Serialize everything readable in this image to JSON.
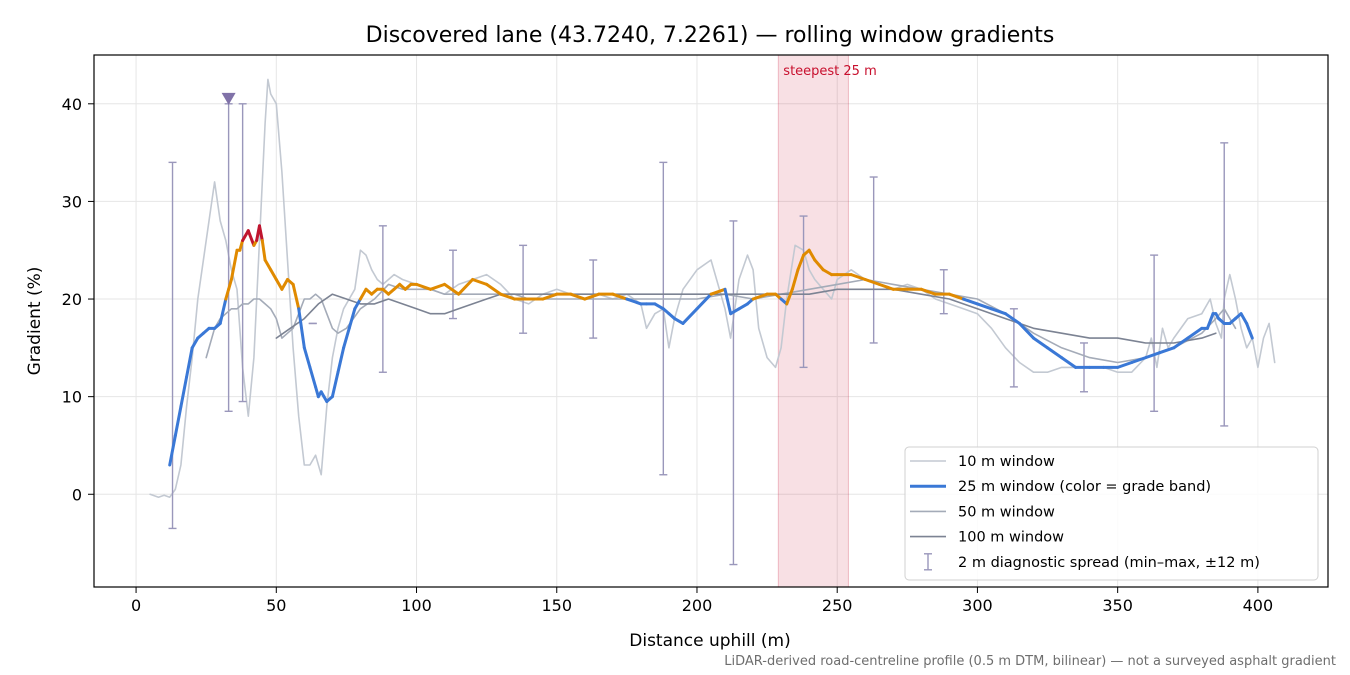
{
  "chart_data": {
    "type": "line",
    "title": "Discovered lane (43.7240, 7.2261) — rolling window gradients",
    "xlabel": "Distance uphill (m)",
    "ylabel": "Gradient (%)",
    "xlim": [
      -15,
      425
    ],
    "ylim": [
      -9.5,
      45
    ],
    "xticks": [
      0,
      50,
      100,
      150,
      200,
      250,
      300,
      350,
      400
    ],
    "yticks": [
      0,
      10,
      20,
      30,
      40
    ],
    "grid": true,
    "legend_position": "lower-right",
    "footer": "LiDAR-derived road-centreline profile (0.5 m DTM, bilinear) — not a surveyed asphalt gradient",
    "highlight": {
      "x_start": 229,
      "x_end": 254,
      "label": "steepest 25 m",
      "color": "#c8102e"
    },
    "marker": {
      "x": 33,
      "y": 40.5,
      "shape": "triangle-down",
      "color": "#8072a8"
    },
    "colors": {
      "w10": "#c3c9d2",
      "w50": "#a4abb8",
      "w100": "#7c8393",
      "grade_low": "#3a78d6",
      "grade_mid": "#e08a00",
      "grade_high": "#c0152f",
      "errorbar": "#9a97bb"
    },
    "series": [
      {
        "name": "10 m window",
        "x": [
          5,
          8,
          10,
          12,
          14,
          16,
          18,
          20,
          22,
          24,
          26,
          28,
          30,
          32,
          34,
          36,
          38,
          40,
          42,
          44,
          46,
          47,
          48,
          50,
          52,
          54,
          56,
          58,
          60,
          62,
          64,
          66,
          68,
          70,
          72,
          74,
          76,
          78,
          80,
          82,
          84,
          86,
          88,
          90,
          92,
          95,
          100,
          105,
          110,
          115,
          120,
          125,
          130,
          135,
          140,
          145,
          150,
          155,
          160,
          165,
          170,
          175,
          180,
          182,
          185,
          188,
          190,
          192,
          195,
          200,
          205,
          210,
          212,
          215,
          218,
          220,
          222,
          225,
          228,
          230,
          232,
          235,
          238,
          240,
          242,
          245,
          248,
          250,
          255,
          260,
          265,
          270,
          275,
          280,
          285,
          290,
          295,
          300,
          305,
          310,
          315,
          320,
          325,
          330,
          335,
          340,
          345,
          350,
          355,
          360,
          362,
          364,
          366,
          368,
          370,
          375,
          380,
          383,
          385,
          387,
          388,
          390,
          392,
          394,
          396,
          398,
          400,
          402,
          404,
          406
        ],
        "values": [
          0,
          -0.3,
          -0.1,
          -0.3,
          0.5,
          3,
          9,
          14,
          20,
          24,
          28,
          32,
          28,
          26,
          23,
          21,
          13,
          8,
          14,
          26,
          38,
          42.5,
          41,
          40,
          33,
          24,
          15,
          8,
          3,
          3,
          4,
          2,
          9,
          14,
          17,
          19,
          20,
          21,
          25,
          24.5,
          23,
          22,
          21.5,
          22,
          22.5,
          22,
          21.5,
          21,
          20.5,
          21.5,
          22,
          22.5,
          21.5,
          20,
          19.5,
          20.5,
          21,
          20.5,
          20,
          20.5,
          20,
          20.5,
          19.5,
          17,
          18.5,
          19,
          15,
          18,
          21,
          23,
          24,
          19,
          16,
          22,
          24.5,
          23,
          17,
          14,
          13,
          15,
          20,
          25.5,
          25,
          23,
          22,
          21,
          20,
          22,
          23,
          22,
          21.5,
          21,
          21.5,
          21,
          20,
          19.5,
          19,
          18.5,
          17,
          15,
          13.5,
          12.5,
          12.5,
          13,
          13,
          13,
          13,
          12.5,
          12.5,
          14,
          16,
          13,
          17,
          15,
          16,
          18,
          18.5,
          20,
          17.5,
          16,
          20,
          22.5,
          20,
          17,
          15,
          16,
          13,
          16,
          17.5,
          13.5
        ]
      },
      {
        "name": "25 m window (color = grade band)",
        "x": [
          12,
          14,
          16,
          18,
          20,
          22,
          24,
          26,
          28,
          30,
          32,
          33,
          34,
          36,
          37,
          38,
          40,
          42,
          43,
          44,
          45,
          46,
          48,
          50,
          52,
          54,
          56,
          58,
          60,
          62,
          64,
          65,
          66,
          67,
          68,
          70,
          72,
          74,
          76,
          78,
          80,
          82,
          84,
          86,
          88,
          90,
          92,
          94,
          96,
          98,
          100,
          105,
          110,
          115,
          120,
          125,
          130,
          135,
          140,
          145,
          150,
          155,
          160,
          165,
          170,
          175,
          180,
          182,
          185,
          188,
          190,
          192,
          195,
          200,
          205,
          210,
          212,
          215,
          218,
          220,
          225,
          228,
          230,
          232,
          234,
          236,
          238,
          240,
          242,
          245,
          248,
          250,
          255,
          260,
          265,
          270,
          275,
          280,
          285,
          290,
          295,
          300,
          305,
          310,
          315,
          320,
          325,
          330,
          335,
          340,
          345,
          350,
          355,
          360,
          365,
          370,
          375,
          380,
          382,
          384,
          385,
          386,
          388,
          390,
          392,
          394,
          396,
          398
        ],
        "values": [
          3,
          6,
          9,
          12,
          15,
          16,
          16.5,
          17,
          17,
          17.5,
          20,
          21,
          22,
          25,
          25,
          26,
          27,
          25.5,
          26,
          27.5,
          26,
          24,
          23,
          22,
          21,
          22,
          21.5,
          19,
          15,
          13,
          11,
          10,
          10.5,
          10,
          9.5,
          10,
          12.5,
          15,
          17,
          19,
          20,
          21,
          20.5,
          21,
          21,
          20.5,
          21,
          21.5,
          21,
          21.5,
          21.5,
          21,
          21.5,
          20.5,
          22,
          21.5,
          20.5,
          20,
          20,
          20,
          20.5,
          20.5,
          20,
          20.5,
          20.5,
          20,
          19.5,
          19.5,
          19.5,
          19,
          18.5,
          18,
          17.5,
          19,
          20.5,
          21,
          18.5,
          19,
          19.5,
          20,
          20.5,
          20.5,
          20,
          19.5,
          21,
          23,
          24.5,
          25,
          24,
          23,
          22.5,
          22.5,
          22.5,
          22,
          21.5,
          21,
          21,
          21,
          20.5,
          20.5,
          20,
          19.5,
          19,
          18.5,
          17.5,
          16,
          15,
          14,
          13,
          13,
          13,
          13,
          13.5,
          14,
          14.5,
          15,
          16,
          17,
          17,
          18.5,
          18.5,
          18,
          17.5,
          17.5,
          18,
          18.5,
          17.5,
          16
        ]
      },
      {
        "name": "50 m window",
        "x": [
          25,
          28,
          30,
          32,
          34,
          36,
          38,
          40,
          42,
          44,
          46,
          48,
          50,
          52,
          54,
          56,
          58,
          60,
          62,
          64,
          66,
          68,
          70,
          72,
          75,
          80,
          85,
          90,
          95,
          100,
          105,
          110,
          115,
          120,
          125,
          130,
          135,
          140,
          150,
          160,
          170,
          180,
          190,
          200,
          210,
          220,
          230,
          240,
          250,
          260,
          270,
          280,
          290,
          300,
          310,
          320,
          330,
          340,
          350,
          360,
          370,
          380,
          385,
          388,
          392
        ],
        "values": [
          14,
          17,
          18,
          18.5,
          19,
          19,
          19.5,
          19.5,
          20,
          20,
          19.5,
          19,
          18,
          16,
          16.5,
          17,
          18.5,
          20,
          20,
          20.5,
          20,
          18.5,
          17,
          16.5,
          17,
          19,
          20,
          21.5,
          21,
          21,
          21,
          20.5,
          20.5,
          20.5,
          20.5,
          20.5,
          20.5,
          20,
          20,
          20,
          20,
          20,
          20,
          20,
          20.5,
          20,
          20.5,
          21,
          21.5,
          22,
          21.5,
          21,
          20.5,
          20,
          18.5,
          16.5,
          15,
          14,
          13.5,
          14,
          15,
          16.5,
          18,
          19,
          17
        ]
      },
      {
        "name": "100 m window",
        "x": [
          50,
          55,
          60,
          65,
          70,
          75,
          80,
          85,
          90,
          95,
          100,
          105,
          110,
          115,
          120,
          125,
          130,
          135,
          140,
          150,
          160,
          170,
          180,
          190,
          200,
          210,
          220,
          230,
          240,
          250,
          260,
          270,
          280,
          290,
          300,
          310,
          320,
          330,
          340,
          350,
          360,
          370,
          380,
          385
        ],
        "values": [
          16,
          17,
          18,
          19.5,
          20.5,
          20,
          19.5,
          19.5,
          20,
          19.5,
          19,
          18.5,
          18.5,
          19,
          19.5,
          20,
          20.5,
          20.5,
          20.5,
          20.5,
          20.5,
          20.5,
          20.5,
          20.5,
          20.5,
          20.5,
          20.5,
          20.5,
          20.5,
          21,
          21,
          21,
          20.5,
          20,
          19,
          18,
          17,
          16.5,
          16,
          16,
          15.5,
          15.5,
          16,
          16.5
        ]
      }
    ],
    "errorbars": {
      "name": "2 m diagnostic spread (min–max, ±12 m)",
      "items": [
        {
          "x": 13,
          "min": -3.5,
          "max": 34
        },
        {
          "x": 33,
          "min": 8.5,
          "max": 40
        },
        {
          "x": 38,
          "min": 9.5,
          "max": 40
        },
        {
          "x": 63,
          "min": 17.5,
          "max": 17.5
        },
        {
          "x": 88,
          "min": 12.5,
          "max": 27.5
        },
        {
          "x": 113,
          "min": 18,
          "max": 25
        },
        {
          "x": 138,
          "min": 16.5,
          "max": 25.5
        },
        {
          "x": 163,
          "min": 16,
          "max": 24
        },
        {
          "x": 188,
          "min": 2,
          "max": 34
        },
        {
          "x": 213,
          "min": -7.2,
          "max": 28
        },
        {
          "x": 238,
          "min": 13,
          "max": 28.5
        },
        {
          "x": 263,
          "min": 15.5,
          "max": 32.5
        },
        {
          "x": 288,
          "min": 18.5,
          "max": 23
        },
        {
          "x": 313,
          "min": 11,
          "max": 19
        },
        {
          "x": 338,
          "min": 10.5,
          "max": 15.5
        },
        {
          "x": 363,
          "min": 8.5,
          "max": 24.5
        },
        {
          "x": 388,
          "min": 7,
          "max": 36
        }
      ]
    }
  }
}
